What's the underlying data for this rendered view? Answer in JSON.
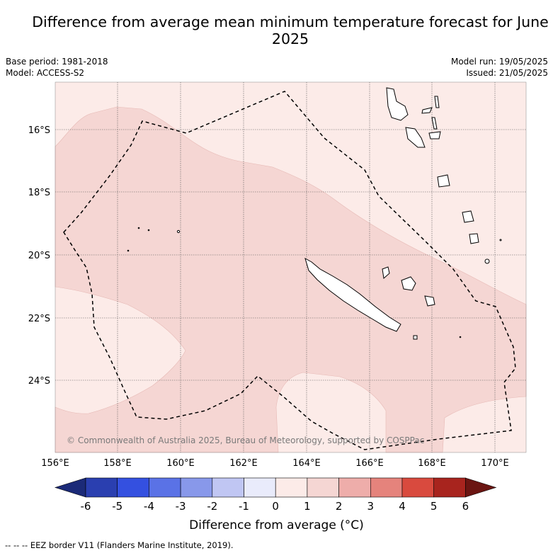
{
  "title": "Difference from average mean minimum temperature forecast for June 2025",
  "meta": {
    "base_period": "Base period: 1981-2018",
    "model": "Model: ACCESS-S2",
    "model_run": "Model run: 19/05/2025",
    "issued": "Issued: 21/05/2025"
  },
  "map": {
    "lon_ticks": [
      "156°E",
      "158°E",
      "160°E",
      "162°E",
      "164°E",
      "166°E",
      "168°E",
      "170°E"
    ],
    "lat_ticks": [
      "16°S",
      "18°S",
      "20°S",
      "22°S",
      "24°S"
    ],
    "copyright": "© Commonwealth of Australia 2025, Bureau of Meteorology, supported by COSPPac",
    "colors": {
      "band_0_1": "#fcebe8",
      "band_1_2": "#f5d6d3",
      "eez_border": "#000000"
    }
  },
  "colorbar": {
    "labels": [
      "-6",
      "-5",
      "-4",
      "-3",
      "-2",
      "-1",
      "0",
      "1",
      "2",
      "3",
      "4",
      "5",
      "6"
    ],
    "colors": [
      "#1b2a78",
      "#2a3fb0",
      "#3450e0",
      "#5a72e6",
      "#8898ea",
      "#c0c6f3",
      "#e9ebfb",
      "#fcebe8",
      "#f5d6d3",
      "#eeadaa",
      "#e5837c",
      "#d94a3e",
      "#a8241e",
      "#6b1512"
    ],
    "title": "Difference from average (°C)"
  },
  "footnote": "--  --  -- EEZ border V11 (Flanders Marine Institute, 2019)."
}
